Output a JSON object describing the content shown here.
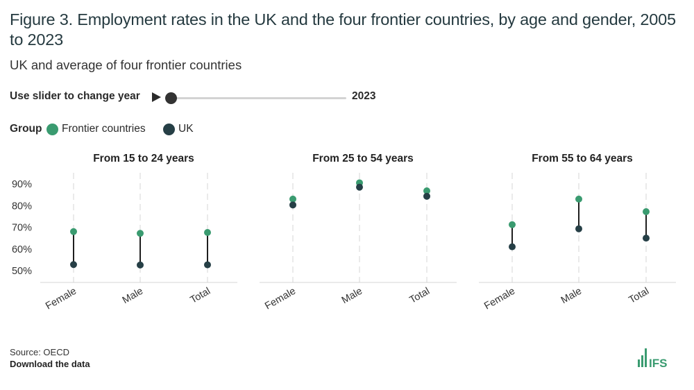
{
  "header": {
    "title": "Figure 3. Employment rates in the UK and the four frontier countries, by age and gender, 2005 to 2023",
    "subtitle": "UK and average of four frontier countries"
  },
  "slider": {
    "label": "Use slider to change year",
    "value": "2023",
    "range": [
      2005,
      2023
    ],
    "current": 2023
  },
  "legend": {
    "title": "Group",
    "items": [
      {
        "label": "Frontier countries",
        "color": "#3a9b70"
      },
      {
        "label": "UK",
        "color": "#263f46"
      }
    ]
  },
  "chart_data": {
    "type": "dumbbell",
    "ylim": [
      45,
      95
    ],
    "yticks": [
      50,
      60,
      70,
      80,
      90
    ],
    "ytick_labels": [
      "50%",
      "60%",
      "70%",
      "80%",
      "90%"
    ],
    "categories": [
      "Female",
      "Male",
      "Total"
    ],
    "series_names": [
      "Frontier countries",
      "UK"
    ],
    "panels": [
      {
        "title": "From 15 to 24 years",
        "frontier": [
          68.0,
          67.2,
          67.6
        ],
        "uk": [
          52.8,
          52.6,
          52.7
        ]
      },
      {
        "title": "From 25 to 54 years",
        "frontier": [
          83.0,
          90.5,
          86.8
        ],
        "uk": [
          80.3,
          88.5,
          84.3
        ]
      },
      {
        "title": "From 55 to 64 years",
        "frontier": [
          71.2,
          83.0,
          77.2
        ],
        "uk": [
          61.0,
          69.3,
          65.0
        ]
      }
    ]
  },
  "footer": {
    "source": "Source: OECD",
    "download": "Download the data",
    "logo_text": "IFS"
  }
}
